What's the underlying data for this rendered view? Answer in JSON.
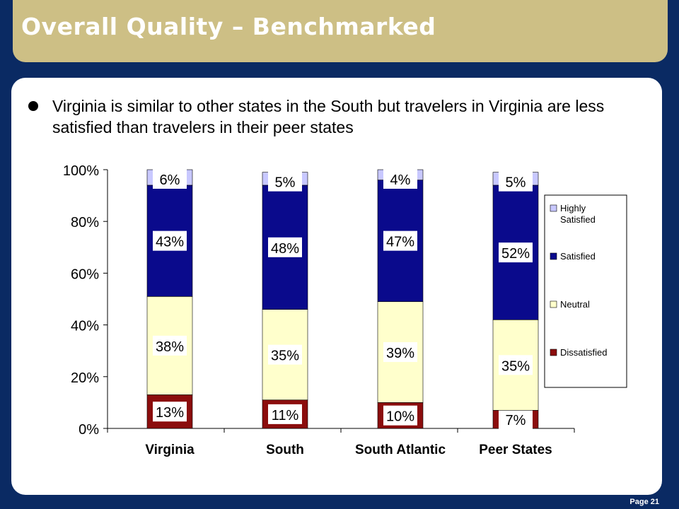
{
  "slide": {
    "title": "Overall Quality – Benchmarked",
    "bullet": "Virginia is similar to other states in the South but travelers in Virginia are less satisfied than travelers in their peer states",
    "page": "Page 21"
  },
  "chart_data": {
    "type": "bar",
    "stacked": true,
    "categories": [
      "Virginia",
      "South",
      "South Atlantic",
      "Peer States"
    ],
    "series": [
      {
        "name": "Dissatisfied",
        "color": "#8b0d0d",
        "values": [
          13,
          11,
          10,
          7
        ],
        "labels": [
          "13%",
          "11%",
          "10%",
          "7%"
        ]
      },
      {
        "name": "Neutral",
        "color": "#ffffcc",
        "values": [
          38,
          35,
          39,
          35
        ],
        "labels": [
          "38%",
          "35%",
          "39%",
          "35%"
        ]
      },
      {
        "name": "Satisfied",
        "color": "#0a0a8c",
        "values": [
          43,
          48,
          47,
          52
        ],
        "labels": [
          "43%",
          "48%",
          "47%",
          "52%"
        ]
      },
      {
        "name": "Highly Satisfied",
        "color": "#c8c8ff",
        "values": [
          6,
          5,
          4,
          5
        ],
        "labels": [
          "6%",
          "5%",
          "4%",
          "5%"
        ]
      }
    ],
    "ylim": [
      0,
      100
    ],
    "yticks": [
      "0%",
      "20%",
      "40%",
      "60%",
      "80%",
      "100%"
    ],
    "legend_position": "right",
    "legend": [
      "Highly Satisfied",
      "Satisfied",
      "Neutral",
      "Dissatisfied"
    ]
  }
}
